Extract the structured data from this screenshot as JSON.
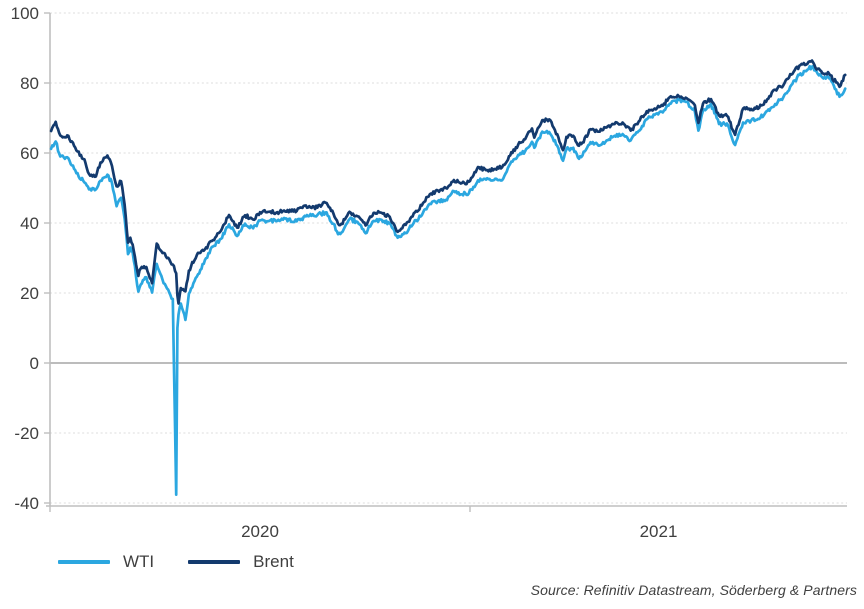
{
  "source": {
    "text": "Source: Refinitiv Datastream, Söderberg & Partners"
  },
  "colors": {
    "wti": "#2BA7E0",
    "brent": "#133A6E",
    "axis": "#BFBFBF",
    "grid": "#DCDCDC",
    "zero_line": "#A6A6A6",
    "label_text": "#3F3F3F"
  },
  "chart_data": {
    "type": "line",
    "grid": "horizontal-dotted",
    "legend_position": "bottom-left",
    "y_axis": {
      "ticks": [
        100,
        80,
        60,
        40,
        20,
        0,
        -20,
        -40
      ],
      "range": [
        -40,
        100
      ]
    },
    "x_axis": {
      "tick_labels": [
        "2020",
        "2021"
      ],
      "tick_dates": [
        "2020-01-01",
        "2021-01-01"
      ],
      "range": [
        "2020-01-01",
        "2021-11-28"
      ]
    },
    "x": [
      "2020-01-02",
      "2020-01-06",
      "2020-01-10",
      "2020-01-17",
      "2020-01-24",
      "2020-01-31",
      "2020-02-04",
      "2020-02-10",
      "2020-02-14",
      "2020-02-20",
      "2020-02-24",
      "2020-02-28",
      "2020-03-03",
      "2020-03-06",
      "2020-03-09",
      "2020-03-11",
      "2020-03-13",
      "2020-03-18",
      "2020-03-20",
      "2020-03-25",
      "2020-03-30",
      "2020-04-03",
      "2020-04-09",
      "2020-04-14",
      "2020-04-17",
      "2020-04-20",
      "2020-04-21",
      "2020-04-22",
      "2020-04-24",
      "2020-04-28",
      "2020-05-01",
      "2020-05-08",
      "2020-05-15",
      "2020-05-22",
      "2020-05-29",
      "2020-06-05",
      "2020-06-12",
      "2020-06-19",
      "2020-06-26",
      "2020-07-02",
      "2020-07-10",
      "2020-07-17",
      "2020-07-24",
      "2020-07-31",
      "2020-08-07",
      "2020-08-14",
      "2020-08-21",
      "2020-08-28",
      "2020-09-04",
      "2020-09-08",
      "2020-09-11",
      "2020-09-18",
      "2020-09-25",
      "2020-10-02",
      "2020-10-09",
      "2020-10-16",
      "2020-10-23",
      "2020-10-30",
      "2020-11-06",
      "2020-11-13",
      "2020-11-20",
      "2020-11-27",
      "2020-12-04",
      "2020-12-11",
      "2020-12-18",
      "2020-12-24",
      "2020-12-31",
      "2021-01-08",
      "2021-01-15",
      "2021-01-22",
      "2021-01-29",
      "2021-02-05",
      "2021-02-12",
      "2021-02-18",
      "2021-02-24",
      "2021-02-26",
      "2021-03-05",
      "2021-03-11",
      "2021-03-19",
      "2021-03-23",
      "2021-03-26",
      "2021-04-01",
      "2021-04-05",
      "2021-04-09",
      "2021-04-16",
      "2021-04-23",
      "2021-04-30",
      "2021-05-07",
      "2021-05-14",
      "2021-05-21",
      "2021-05-28",
      "2021-06-04",
      "2021-06-11",
      "2021-06-18",
      "2021-06-25",
      "2021-07-02",
      "2021-07-09",
      "2021-07-16",
      "2021-07-19",
      "2021-07-23",
      "2021-07-30",
      "2021-08-06",
      "2021-08-13",
      "2021-08-20",
      "2021-08-27",
      "2021-09-03",
      "2021-09-10",
      "2021-09-17",
      "2021-09-24",
      "2021-10-01",
      "2021-10-08",
      "2021-10-15",
      "2021-10-22",
      "2021-10-26",
      "2021-10-29",
      "2021-11-05",
      "2021-11-10",
      "2021-11-19",
      "2021-11-24"
    ],
    "series": [
      {
        "name": "WTI",
        "color": "#2BA7E0",
        "values": [
          61.2,
          63.3,
          59.0,
          58.5,
          54.2,
          51.6,
          49.6,
          49.6,
          52.1,
          53.8,
          51.4,
          44.8,
          47.2,
          41.3,
          31.1,
          33.0,
          31.7,
          20.4,
          22.4,
          24.5,
          20.1,
          28.3,
          22.8,
          20.1,
          18.3,
          -37.6,
          10.0,
          13.8,
          17.0,
          12.3,
          19.8,
          24.7,
          29.4,
          33.3,
          35.5,
          39.6,
          36.3,
          39.8,
          38.5,
          40.7,
          40.6,
          40.6,
          41.3,
          40.3,
          41.2,
          42.0,
          42.3,
          43.0,
          39.8,
          36.8,
          37.3,
          41.1,
          40.3,
          37.1,
          40.6,
          40.9,
          39.9,
          35.8,
          37.1,
          40.1,
          42.2,
          45.5,
          46.3,
          46.6,
          49.1,
          48.2,
          48.5,
          52.2,
          52.4,
          52.3,
          52.2,
          56.9,
          59.5,
          60.5,
          63.2,
          61.5,
          66.1,
          66.0,
          61.4,
          57.8,
          61.0,
          61.5,
          58.7,
          59.3,
          63.1,
          62.1,
          63.6,
          64.9,
          65.4,
          63.6,
          66.3,
          69.6,
          70.9,
          71.6,
          74.1,
          75.2,
          74.6,
          71.8,
          66.4,
          72.1,
          74.0,
          68.3,
          68.4,
          62.3,
          68.7,
          69.3,
          69.7,
          72.0,
          74.0,
          75.9,
          79.4,
          82.3,
          83.8,
          84.7,
          83.6,
          81.3,
          81.3,
          76.1,
          78.4
        ]
      },
      {
        "name": "Brent",
        "color": "#133A6E",
        "values": [
          66.3,
          68.9,
          65.0,
          64.9,
          60.7,
          58.2,
          54.0,
          53.3,
          57.3,
          59.3,
          56.3,
          50.5,
          51.9,
          45.3,
          34.4,
          35.8,
          33.9,
          24.9,
          27.0,
          27.4,
          22.8,
          34.1,
          31.5,
          29.6,
          28.1,
          25.6,
          19.3,
          17.0,
          21.4,
          20.5,
          26.4,
          30.9,
          32.5,
          35.1,
          37.8,
          42.3,
          38.7,
          42.2,
          41.0,
          43.1,
          43.2,
          43.1,
          43.3,
          43.3,
          44.4,
          44.8,
          44.4,
          45.8,
          42.7,
          39.8,
          39.8,
          43.2,
          41.9,
          39.3,
          42.9,
          42.9,
          41.8,
          37.5,
          39.5,
          42.8,
          45.0,
          48.2,
          49.3,
          50.0,
          52.3,
          51.3,
          51.8,
          56.0,
          55.1,
          55.4,
          55.9,
          59.3,
          62.4,
          63.9,
          67.0,
          64.4,
          69.4,
          69.6,
          64.5,
          60.8,
          64.6,
          64.9,
          62.2,
          63.0,
          66.8,
          66.1,
          67.3,
          68.3,
          68.7,
          66.4,
          69.0,
          71.9,
          72.7,
          73.5,
          76.2,
          76.2,
          75.6,
          73.6,
          68.6,
          74.1,
          75.4,
          70.7,
          70.6,
          65.2,
          72.7,
          72.6,
          72.9,
          75.3,
          78.1,
          79.3,
          82.4,
          84.9,
          85.5,
          86.4,
          84.4,
          82.7,
          82.6,
          78.9,
          82.3
        ]
      }
    ]
  }
}
